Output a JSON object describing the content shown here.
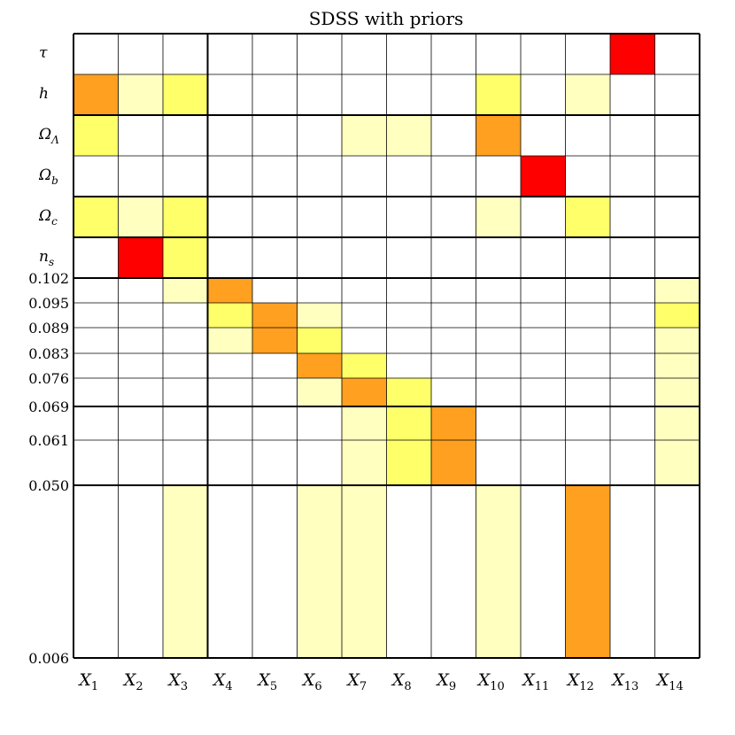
{
  "chart_data": {
    "type": "heatmap",
    "title": "SDSS with priors",
    "columns": [
      "X1",
      "X2",
      "X3",
      "X4",
      "X5",
      "X6",
      "X7",
      "X8",
      "X9",
      "X10",
      "X11",
      "X12",
      "X13",
      "X14"
    ],
    "column_labels": [
      {
        "base": "X",
        "sub": "1"
      },
      {
        "base": "X",
        "sub": "2"
      },
      {
        "base": "X",
        "sub": "3"
      },
      {
        "base": "X",
        "sub": "4"
      },
      {
        "base": "X",
        "sub": "5"
      },
      {
        "base": "X",
        "sub": "6"
      },
      {
        "base": "X",
        "sub": "7"
      },
      {
        "base": "X",
        "sub": "8"
      },
      {
        "base": "X",
        "sub": "9"
      },
      {
        "base": "X",
        "sub": "10"
      },
      {
        "base": "X",
        "sub": "11"
      },
      {
        "base": "X",
        "sub": "12"
      },
      {
        "base": "X",
        "sub": "13"
      },
      {
        "base": "X",
        "sub": "14"
      }
    ],
    "parameter_rows": [
      {
        "base": "τ",
        "sub": ""
      },
      {
        "base": "h",
        "sub": ""
      },
      {
        "base": "Ω",
        "sub": "Λ"
      },
      {
        "base": "Ω",
        "sub": "b"
      },
      {
        "base": "Ω",
        "sub": "c"
      },
      {
        "base": "n",
        "sub": "s"
      }
    ],
    "bin_edges": [
      "0.102",
      "0.095",
      "0.089",
      "0.083",
      "0.076",
      "0.069",
      "0.061",
      "0.050",
      "0.006"
    ],
    "bin_edge_values": [
      0.102,
      0.095,
      0.089,
      0.083,
      0.076,
      0.069,
      0.061,
      0.05,
      0.006
    ],
    "scale_breaks": [
      0.05
    ],
    "colors": {
      "0": "#ffffff",
      "1": "#ffffc0",
      "2": "#ffff6a",
      "3": "#ffa020",
      "4": "#ff0000"
    },
    "grid": true,
    "param_cells": [
      [
        0,
        0,
        0,
        0,
        0,
        0,
        0,
        0,
        0,
        0,
        0,
        0,
        4,
        0
      ],
      [
        3,
        1,
        2,
        0,
        0,
        0,
        0,
        0,
        0,
        2,
        0,
        1,
        0,
        0
      ],
      [
        2,
        0,
        0,
        0,
        0,
        0,
        1,
        1,
        0,
        3,
        0,
        0,
        0,
        0
      ],
      [
        0,
        0,
        0,
        0,
        0,
        0,
        0,
        0,
        0,
        0,
        4,
        0,
        0,
        0
      ],
      [
        2,
        1,
        2,
        0,
        0,
        0,
        0,
        0,
        0,
        1,
        0,
        2,
        0,
        0
      ],
      [
        0,
        4,
        2,
        0,
        0,
        0,
        0,
        0,
        0,
        0,
        0,
        0,
        0,
        0
      ]
    ],
    "bin_cells": [
      [
        0,
        0,
        1,
        3,
        0,
        0,
        0,
        0,
        0,
        0,
        0,
        0,
        0,
        1
      ],
      [
        0,
        0,
        0,
        2,
        3,
        1,
        0,
        0,
        0,
        0,
        0,
        0,
        0,
        2
      ],
      [
        0,
        0,
        0,
        1,
        3,
        2,
        0,
        0,
        0,
        0,
        0,
        0,
        0,
        1
      ],
      [
        0,
        0,
        0,
        0,
        0,
        3,
        2,
        0,
        0,
        0,
        0,
        0,
        0,
        1
      ],
      [
        0,
        0,
        0,
        0,
        0,
        1,
        3,
        2,
        0,
        0,
        0,
        0,
        0,
        1
      ],
      [
        0,
        0,
        0,
        0,
        0,
        0,
        1,
        2,
        3,
        0,
        0,
        0,
        0,
        1
      ],
      [
        0,
        0,
        0,
        0,
        0,
        0,
        1,
        2,
        3,
        0,
        0,
        0,
        0,
        1
      ],
      [
        0,
        0,
        1,
        0,
        0,
        1,
        1,
        0,
        0,
        1,
        0,
        3,
        0,
        0
      ]
    ]
  }
}
